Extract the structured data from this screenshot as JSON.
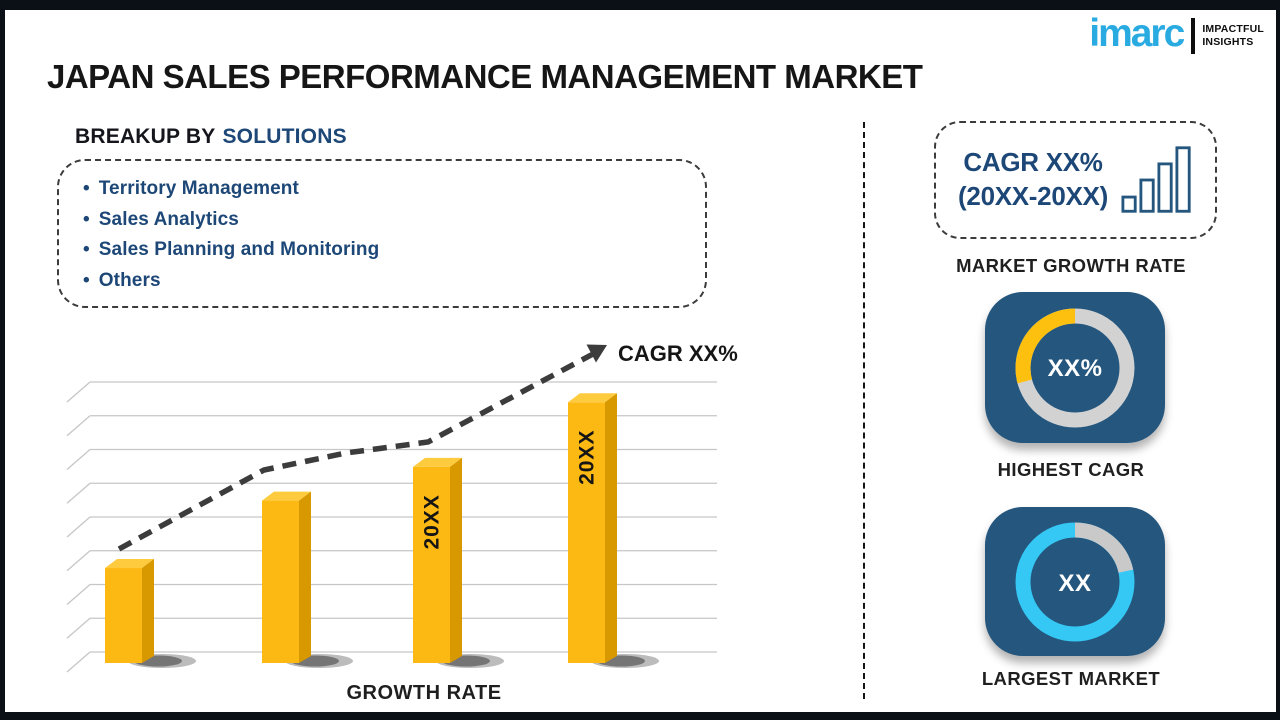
{
  "header": {
    "title": "JAPAN SALES PERFORMANCE MANAGEMENT MARKET"
  },
  "logo": {
    "brand": "imarc",
    "tagline1": "IMPACTFUL",
    "tagline2": "INSIGHTS",
    "brand_color": "#29abe2"
  },
  "breakup": {
    "heading_prefix": "BREAKUP BY",
    "heading_highlight": "SOLUTIONS",
    "items": [
      "Territory Management",
      "Sales Analytics",
      "Sales Planning and Monitoring",
      "Others"
    ]
  },
  "chart_data": {
    "type": "bar",
    "categories": [
      "",
      "",
      "20XX",
      "20XX"
    ],
    "values": [
      37,
      61,
      73,
      96
    ],
    "ylim": [
      0,
      100
    ],
    "title": "",
    "xlabel": "GROWTH RATE",
    "ylabel": "",
    "trend_label": "CAGR XX%",
    "grid": true,
    "legend": "none",
    "colors": {
      "bar_front": "#fdb913",
      "bar_top": "#fecb3e",
      "bar_side": "#d89800",
      "trend": "#3c3c3c",
      "gridline": "#c6c6c6",
      "label": "#151515"
    }
  },
  "right_panel": {
    "tile_color": "#24567e",
    "growth_card": {
      "line1": "CAGR XX%",
      "line2": "(20XX-20XX)"
    },
    "growth_caption": "MARKET GROWTH RATE",
    "highest_cagr": {
      "value": "XX%",
      "caption": "HIGHEST CAGR",
      "ring_color": "#d2d2d2",
      "accent_color": "#fec00f",
      "accent_sweep_deg": 105
    },
    "largest_market": {
      "value": "XX",
      "caption": "LARGEST MARKET",
      "ring_color": "#35c8f4",
      "accent_color": "#c9c9c9",
      "accent_sweep_deg": 78
    }
  }
}
